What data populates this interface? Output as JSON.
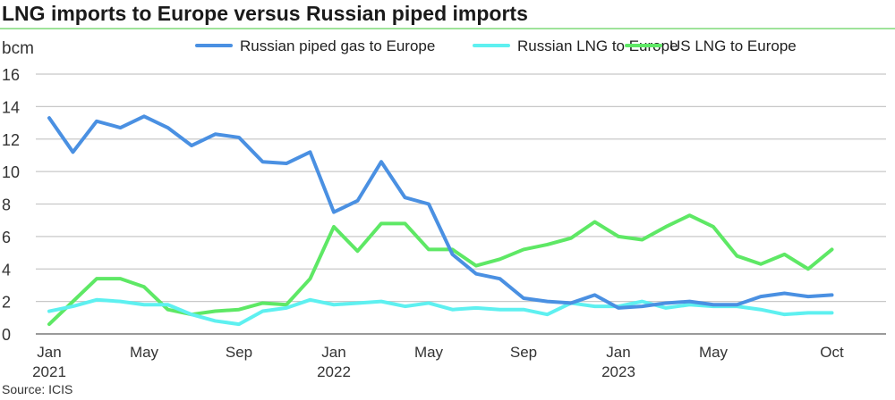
{
  "chart_data": {
    "type": "line",
    "title": "LNG imports to Europe versus Russian piped imports",
    "ylabel": "bcm",
    "ylim": [
      0,
      16
    ],
    "yticks": [
      0,
      2,
      4,
      6,
      8,
      10,
      12,
      14,
      16
    ],
    "grid": true,
    "legend": "top-right",
    "x": [
      "Jan 2021",
      "Feb 2021",
      "Mar 2021",
      "Apr 2021",
      "May 2021",
      "Jun 2021",
      "Jul 2021",
      "Aug 2021",
      "Sep 2021",
      "Oct 2021",
      "Nov 2021",
      "Dec 2021",
      "Jan 2022",
      "Feb 2022",
      "Mar 2022",
      "Apr 2022",
      "May 2022",
      "Jun 2022",
      "Jul 2022",
      "Aug 2022",
      "Sep 2022",
      "Oct 2022",
      "Nov 2022",
      "Dec 2022",
      "Jan 2023",
      "Feb 2023",
      "Mar 2023",
      "Apr 2023",
      "May 2023",
      "Jun 2023",
      "Jul 2023",
      "Aug 2023",
      "Sep 2023",
      "Oct 2023"
    ],
    "xticks": [
      {
        "i": 0,
        "label": "Jan",
        "year": "2021"
      },
      {
        "i": 4,
        "label": "May"
      },
      {
        "i": 8,
        "label": "Sep"
      },
      {
        "i": 12,
        "label": "Jan",
        "year": "2022"
      },
      {
        "i": 16,
        "label": "May"
      },
      {
        "i": 20,
        "label": "Sep"
      },
      {
        "i": 24,
        "label": "Jan",
        "year": "2023"
      },
      {
        "i": 28,
        "label": "May"
      },
      {
        "i": 33,
        "label": "Oct"
      }
    ],
    "series": [
      {
        "name": "Russian piped gas to Europe",
        "color": "#4a90e2",
        "values": [
          13.3,
          11.2,
          13.1,
          12.7,
          13.4,
          12.7,
          11.6,
          12.3,
          12.1,
          10.6,
          10.5,
          11.2,
          7.5,
          8.2,
          10.6,
          8.4,
          8.0,
          4.9,
          3.7,
          3.4,
          2.2,
          2.0,
          1.9,
          2.4,
          1.6,
          1.7,
          1.9,
          2.0,
          1.8,
          1.8,
          2.3,
          2.5,
          2.3,
          2.4
        ]
      },
      {
        "name": "Russian LNG to Europe",
        "color": "#5ef0f0",
        "values": [
          1.4,
          1.7,
          2.1,
          2.0,
          1.8,
          1.8,
          1.2,
          0.8,
          0.6,
          1.4,
          1.6,
          2.1,
          1.8,
          1.9,
          2.0,
          1.7,
          1.9,
          1.5,
          1.6,
          1.5,
          1.5,
          1.2,
          1.9,
          1.7,
          1.7,
          2.0,
          1.6,
          1.8,
          1.7,
          1.7,
          1.5,
          1.2,
          1.3,
          1.3
        ]
      },
      {
        "name": "US LNG to Europe",
        "color": "#5ee865",
        "values": [
          0.6,
          2.0,
          3.4,
          3.4,
          2.9,
          1.5,
          1.2,
          1.4,
          1.5,
          1.9,
          1.8,
          3.4,
          6.6,
          5.1,
          6.8,
          6.8,
          5.2,
          5.2,
          4.2,
          4.6,
          5.2,
          5.5,
          5.9,
          6.9,
          6.0,
          5.8,
          6.6,
          7.3,
          6.6,
          4.8,
          4.3,
          4.9,
          4.0,
          5.2
        ]
      }
    ]
  },
  "source": "Source: ICIS"
}
